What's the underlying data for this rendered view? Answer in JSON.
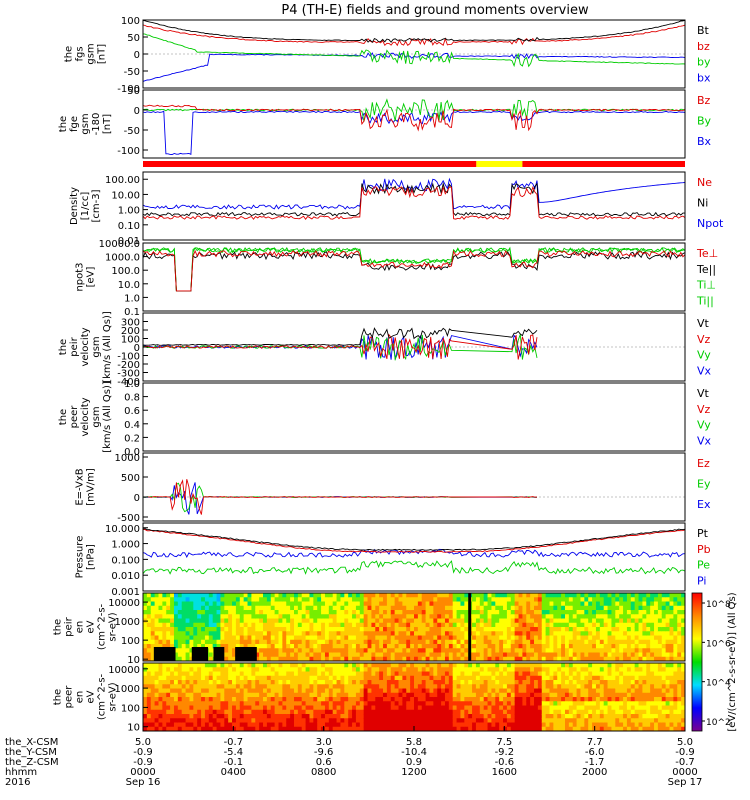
{
  "chart_data": {
    "type": "line",
    "title": "P4 (TH-E) fields and ground moments overview",
    "time_axis": {
      "start": "2016-09-16 00:00",
      "end": "2016-09-17 00:00",
      "rows": [
        {
          "label": "the_X-CSM",
          "values": [
            "5.0",
            "-0.7",
            "3.0",
            "5.8",
            "7.5",
            "7.7",
            "5.0"
          ]
        },
        {
          "label": "the_Y-CSM",
          "values": [
            "-0.9",
            "-5.4",
            "-9.6",
            "-10.4",
            "-9.2",
            "-6.0",
            "-0.9"
          ]
        },
        {
          "label": "the_Z-CSM",
          "values": [
            "-0.9",
            "-0.1",
            "0.6",
            "0.9",
            "-0.6",
            "-1.7",
            "-0.7"
          ]
        },
        {
          "label": "hhmm",
          "values": [
            "0000",
            "0400",
            "0800",
            "1200",
            "1600",
            "2000",
            "0000"
          ]
        },
        {
          "label": "2016",
          "values": [
            "Sep 16",
            "",
            "",
            "",
            "",
            "",
            "Sep 17"
          ]
        }
      ]
    },
    "panels": [
      {
        "id": "fgs_gsm",
        "ylabel": [
          "the",
          "fgs",
          "gsm",
          "[nT]"
        ],
        "scale": "linear",
        "ylim": [
          -100,
          100
        ],
        "ticks": [
          "100",
          "50",
          "0",
          "-50",
          "-100"
        ],
        "series": [
          {
            "name": "Bt",
            "color": "#000000"
          },
          {
            "name": "bz",
            "color": "#e00000"
          },
          {
            "name": "by",
            "color": "#00cc00"
          },
          {
            "name": "bx",
            "color": "#0000ee"
          }
        ]
      },
      {
        "id": "fge_gsm",
        "ylabel": [
          "the",
          "fge",
          "gsm",
          "-180",
          "[nT]"
        ],
        "scale": "linear",
        "ylim": [
          -120,
          50
        ],
        "ticks": [
          "50",
          "0",
          "-50",
          "-100"
        ],
        "series": [
          {
            "name": "Bz",
            "color": "#e00000"
          },
          {
            "name": "By",
            "color": "#00cc00"
          },
          {
            "name": "Bx",
            "color": "#0000ee"
          }
        ]
      },
      {
        "id": "density",
        "ylabel": [
          "Density",
          "[1/cc]",
          "[cm-3]"
        ],
        "scale": "log",
        "ylim": [
          0.01,
          300
        ],
        "ticks": [
          "100.00",
          "10.00",
          "1.00",
          "0.10",
          "0.01"
        ],
        "series": [
          {
            "name": "Ne",
            "color": "#e00000"
          },
          {
            "name": "Ni",
            "color": "#000000"
          },
          {
            "name": "Npot",
            "color": "#0000ee"
          }
        ]
      },
      {
        "id": "temperature",
        "ylabel": [
          "npot3",
          "[eV]"
        ],
        "scale": "log",
        "ylim": [
          0.1,
          10000
        ],
        "ticks": [
          "10000.0",
          "1000.0",
          "100.0",
          "10.0",
          "1.0",
          "0.1"
        ],
        "series": [
          {
            "name": "Te⊥",
            "color": "#e00000"
          },
          {
            "name": "Te||",
            "color": "#000000"
          },
          {
            "name": "Ti⊥",
            "color": "#00cc00"
          },
          {
            "name": "Ti||",
            "color": "#00cc00"
          }
        ]
      },
      {
        "id": "peir_velocity",
        "ylabel": [
          "the",
          "peir",
          "velocity",
          "gsm",
          "[km/s (All Qs)]"
        ],
        "scale": "linear",
        "ylim": [
          -400,
          400
        ],
        "ticks": [
          "300",
          "200",
          "100",
          "0",
          "-100",
          "-200",
          "-300",
          "-400"
        ],
        "series": [
          {
            "name": "Vt",
            "color": "#000000"
          },
          {
            "name": "Vz",
            "color": "#e00000"
          },
          {
            "name": "Vy",
            "color": "#00cc00"
          },
          {
            "name": "Vx",
            "color": "#0000ee"
          }
        ]
      },
      {
        "id": "peer_velocity",
        "ylabel": [
          "the",
          "peer",
          "velocity",
          "gsm",
          "[km/s (All Qs)]"
        ],
        "scale": "linear",
        "ylim": [
          0,
          1
        ],
        "ticks": [
          "1.0",
          "0.8",
          "0.6",
          "0.4",
          "0.2",
          "0.0"
        ],
        "series": [
          {
            "name": "Vt",
            "color": "#000000"
          },
          {
            "name": "Vz",
            "color": "#e00000"
          },
          {
            "name": "Vy",
            "color": "#00cc00"
          },
          {
            "name": "Vx",
            "color": "#0000ee"
          }
        ]
      },
      {
        "id": "efield",
        "ylabel": [
          "E=-VxB",
          "[mV/m]"
        ],
        "scale": "linear",
        "ylim": [
          -600,
          1100
        ],
        "ticks": [
          "1000",
          "500",
          "0",
          "-500"
        ],
        "series": [
          {
            "name": "Ez",
            "color": "#e00000"
          },
          {
            "name": "Ey",
            "color": "#00cc00"
          },
          {
            "name": "Ex",
            "color": "#0000ee"
          }
        ]
      },
      {
        "id": "pressure",
        "ylabel": [
          "Pressure",
          "[nPa]"
        ],
        "scale": "log",
        "ylim": [
          0.001,
          20
        ],
        "ticks": [
          "10.000",
          "1.000",
          "0.100",
          "0.010",
          "0.001"
        ],
        "series": [
          {
            "name": "Pt",
            "color": "#000000"
          },
          {
            "name": "Pb",
            "color": "#e00000"
          },
          {
            "name": "Pe",
            "color": "#00cc00"
          },
          {
            "name": "Pi",
            "color": "#0000ee"
          }
        ]
      },
      {
        "id": "peir_spec",
        "ylabel": [
          "the",
          "peir",
          "en",
          "eV",
          "(cm^2-s-",
          "sr-eV)"
        ],
        "scale": "log",
        "ylim": [
          8,
          30000
        ],
        "ticks": [
          "10000",
          "1000",
          "100",
          "10"
        ],
        "spectrogram": true
      },
      {
        "id": "peer_spec",
        "ylabel": [
          "the",
          "peer",
          "en",
          "eV",
          "(cm^2-s-",
          "sr-eV)"
        ],
        "scale": "log",
        "ylim": [
          6,
          20000
        ],
        "ticks": [
          "10000",
          "1000",
          "100",
          "10"
        ],
        "spectrogram": true
      }
    ],
    "colorbar": {
      "label": "[eV/(cm^2-s-sr-eV)] (All Qs)",
      "ticks": [
        "10^8",
        "10^6",
        "10^4",
        "10^2"
      ],
      "colors": [
        "#7a0090",
        "#0000ff",
        "#00ddff",
        "#00dd00",
        "#ffff00",
        "#ff8800",
        "#ff0000"
      ]
    },
    "mode_bar": {
      "segments": [
        {
          "start": 0,
          "end": 0.615,
          "color": "#ff0000"
        },
        {
          "start": 0.615,
          "end": 0.7,
          "color": "#ffff00"
        },
        {
          "start": 0.7,
          "end": 1,
          "color": "#ff0000"
        }
      ]
    }
  }
}
